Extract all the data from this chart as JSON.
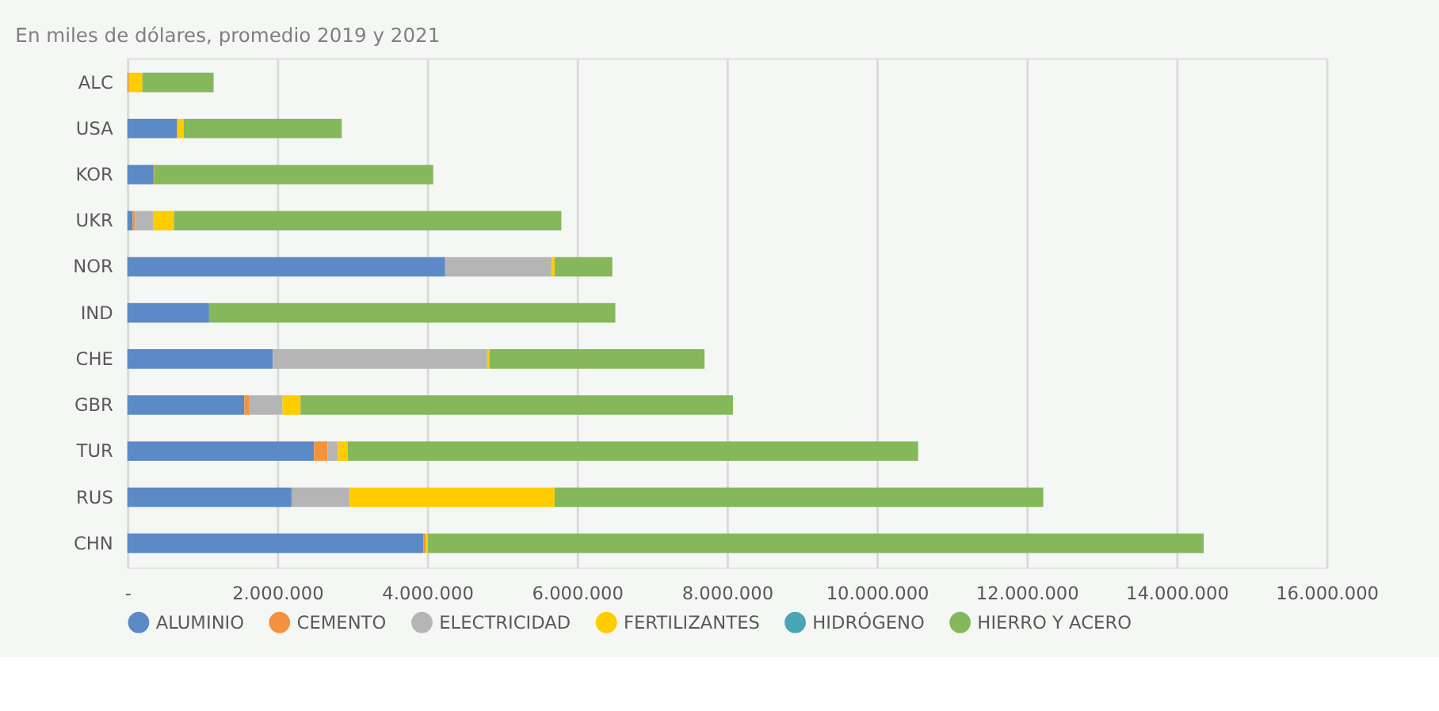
{
  "chart_data": {
    "type": "bar",
    "orientation": "horizontal",
    "stacked": true,
    "title": "En miles de dólares, promedio 2019 y 2021",
    "categories": [
      "ALC",
      "USA",
      "KOR",
      "UKR",
      "NOR",
      "IND",
      "CHE",
      "GBR",
      "TUR",
      "RUS",
      "CHN"
    ],
    "series": [
      {
        "name": "ALUMINIO",
        "color": "#5b8ac6",
        "values": [
          0,
          660000,
          350000,
          70000,
          4240000,
          1090000,
          1940000,
          1560000,
          2490000,
          2190000,
          3950000
        ]
      },
      {
        "name": "CEMENTO",
        "color": "#f3923f",
        "values": [
          20000,
          10000,
          10000,
          30000,
          0,
          0,
          0,
          60000,
          180000,
          0,
          30000
        ]
      },
      {
        "name": "ELECTRICIDAD",
        "color": "#b5b5b5",
        "values": [
          0,
          0,
          0,
          240000,
          1420000,
          0,
          2860000,
          450000,
          140000,
          770000,
          0
        ]
      },
      {
        "name": "FERTILIZANTES",
        "color": "#ffcc00",
        "values": [
          180000,
          80000,
          0,
          280000,
          40000,
          0,
          30000,
          240000,
          130000,
          2740000,
          30000
        ]
      },
      {
        "name": "HIDRÓGENO",
        "color": "#4aa5b5",
        "values": [
          0,
          0,
          0,
          0,
          0,
          0,
          0,
          0,
          0,
          0,
          0
        ]
      },
      {
        "name": "HIERRO Y ACERO",
        "color": "#84b85a",
        "values": [
          950000,
          2110000,
          3720000,
          5170000,
          770000,
          5420000,
          2870000,
          5770000,
          7610000,
          6520000,
          10350000
        ]
      }
    ],
    "xlim": [
      0,
      16000000
    ],
    "xticks": [
      {
        "value": 0,
        "label": "-"
      },
      {
        "value": 2000000,
        "label": "2.000.000"
      },
      {
        "value": 4000000,
        "label": "4.000.000"
      },
      {
        "value": 6000000,
        "label": "6.000.000"
      },
      {
        "value": 8000000,
        "label": "8.000.000"
      },
      {
        "value": 10000000,
        "label": "10.000.000"
      },
      {
        "value": 12000000,
        "label": "12.000.000"
      },
      {
        "value": 14000000,
        "label": "14.000.000"
      },
      {
        "value": 16000000,
        "label": "16.000.000"
      }
    ],
    "grid": "x",
    "legend": "bottom"
  }
}
